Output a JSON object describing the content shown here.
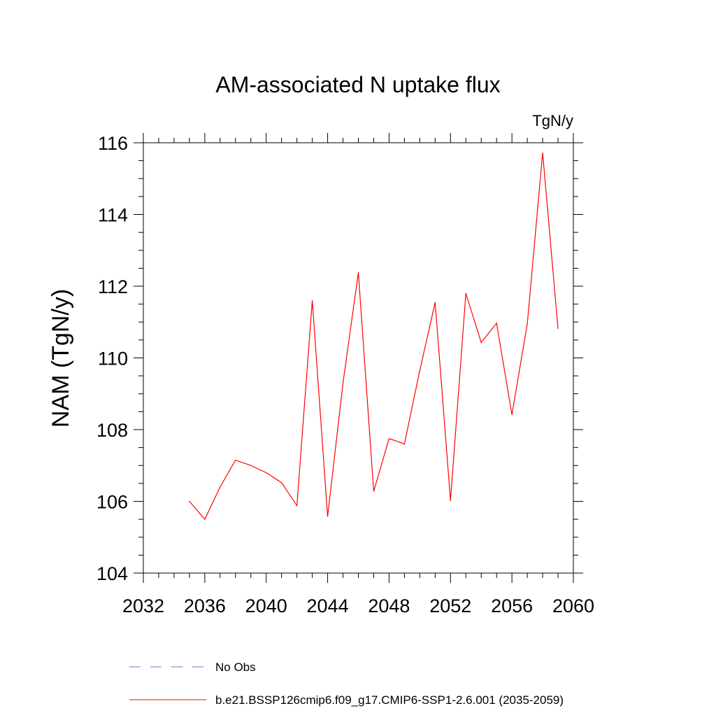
{
  "chart_data": {
    "type": "line",
    "title": "AM-associated N uptake flux",
    "units_label": "TgN/y",
    "ylabel": "NAM  (TgN/y)",
    "xlabel": "",
    "xlim": [
      2032,
      2060
    ],
    "ylim": [
      104,
      116
    ],
    "x_ticks": [
      2032,
      2036,
      2040,
      2044,
      2048,
      2052,
      2056,
      2060
    ],
    "y_ticks": [
      104,
      106,
      108,
      110,
      112,
      114,
      116
    ],
    "grid": false,
    "legend_position": "bottom",
    "series": [
      {
        "name": "b.e21.BSSP126cmip6.f09_g17.CMIP6-SSP1-2.6.001 (2035-2059)",
        "color": "#ff0000",
        "style": "solid",
        "x": [
          2035,
          2036,
          2037,
          2038,
          2039,
          2040,
          2041,
          2042,
          2043,
          2044,
          2045,
          2046,
          2047,
          2048,
          2049,
          2050,
          2051,
          2052,
          2053,
          2054,
          2055,
          2056,
          2057,
          2058,
          2059
        ],
        "y": [
          106.0,
          105.5,
          106.4,
          107.15,
          107.0,
          106.8,
          106.52,
          105.88,
          111.6,
          105.58,
          109.3,
          112.38,
          106.28,
          107.75,
          107.6,
          109.65,
          111.55,
          106.02,
          111.8,
          110.43,
          110.97,
          108.42,
          110.95,
          115.72,
          110.82
        ]
      }
    ],
    "legend": [
      {
        "label": "No Obs",
        "color": "#7b6fd0",
        "style": "dashed"
      },
      {
        "label": "b.e21.BSSP126cmip6.f09_g17.CMIP6-SSP1-2.6.001 (2035-2059)",
        "color": "#ff0000",
        "style": "solid"
      }
    ]
  }
}
